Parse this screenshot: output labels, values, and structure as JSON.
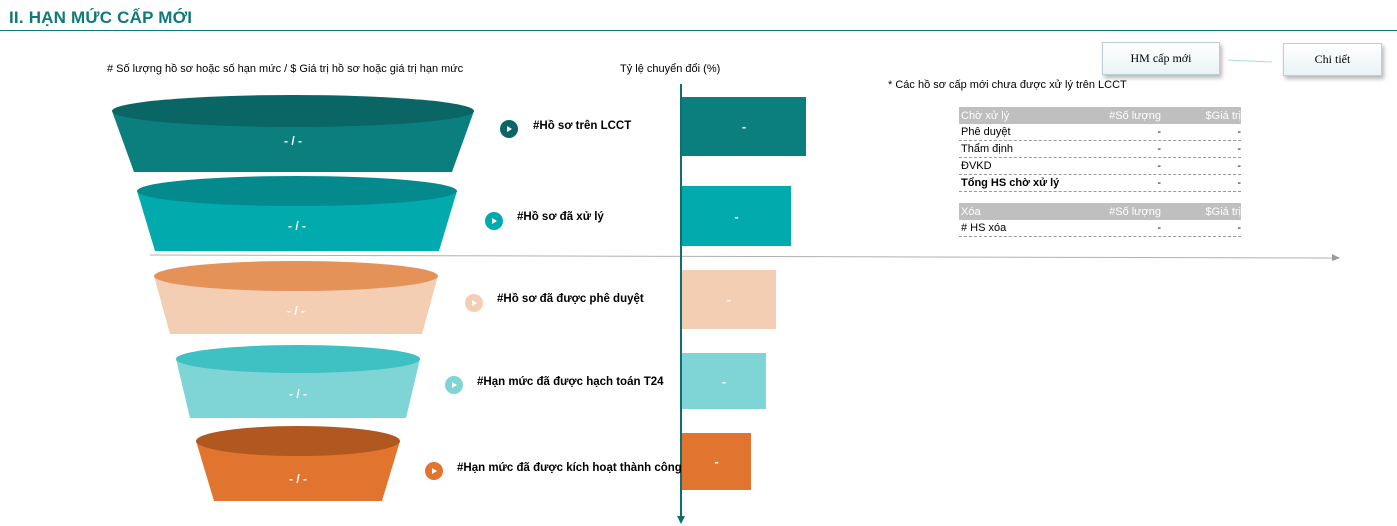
{
  "title": "II. HẠN MỨC CẤP MỚI",
  "headers": {
    "left": "# Số lượng hồ sơ hoặc số hạn mức / $ Giá trị hồ sơ hoặc giá trị hạn mức",
    "middle": "Tỷ lệ chuyển đổi (%)"
  },
  "note": "* Các hồ sơ cấp mới chưa được xử lý trên LCCT",
  "buttons": {
    "hm": "HM cấp mới",
    "detail": "Chi tiết"
  },
  "stages": [
    {
      "label": "#Hồ sơ trên LCCT",
      "funnel_value": "- / -",
      "bar_value": "-",
      "conversion_fraction": 1.0,
      "color": "#0b7f7d",
      "top_color": "#0a6664"
    },
    {
      "label": "#Hồ sơ đã xử lý",
      "funnel_value": "- / -",
      "bar_value": "-",
      "conversion_fraction": 0.88,
      "color": "#00aaad",
      "top_color": "#048a8d"
    },
    {
      "label": "#Hồ sơ đã được phê duyệt",
      "funnel_value": "- / -",
      "bar_value": "-",
      "conversion_fraction": 0.76,
      "color": "#f4ceb3",
      "top_color": "#e59258"
    },
    {
      "label": "#Hạn mức đã được hạch toán T24",
      "funnel_value": "- / -",
      "bar_value": "-",
      "conversion_fraction": 0.68,
      "color": "#7fd4d6",
      "top_color": "#3fc1c4"
    },
    {
      "label": "#Hạn mức đã được kích hoạt thành công",
      "funnel_value": "- / -",
      "bar_value": "-",
      "conversion_fraction": 0.56,
      "color": "#e1742e",
      "top_color": "#b0581f"
    }
  ],
  "pending_table": {
    "headers": [
      "Chờ xử lý",
      "#Số lượng",
      "$Giá trị"
    ],
    "rows": [
      {
        "name": "Phê duyệt",
        "count": "-",
        "value": "-"
      },
      {
        "name": "Thẩm định",
        "count": "-",
        "value": "-"
      },
      {
        "name": "ĐVKD",
        "count": "-",
        "value": "-"
      },
      {
        "name": "Tổng HS chờ xử lý",
        "count": "-",
        "value": "-"
      }
    ]
  },
  "delete_table": {
    "headers": [
      "Xóa",
      "#Số lượng",
      "$Giá trị"
    ],
    "rows": [
      {
        "name": "# HS xóa",
        "count": "-",
        "value": "-"
      }
    ]
  }
}
